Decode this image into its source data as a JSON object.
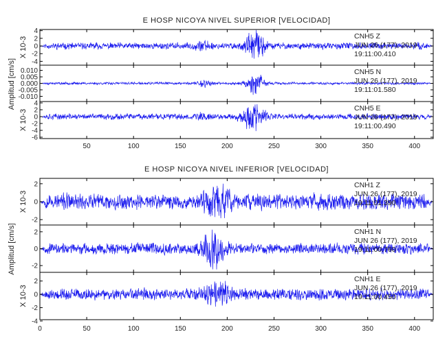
{
  "chart_data": [
    {
      "type": "line",
      "title": "E HOSP NICOYA NIVEL SUPERIOR [VELOCIDAD]",
      "ylabel": "Amplitud [cm/s]",
      "xlim": [
        0,
        420
      ],
      "xticks": [
        "50",
        "100",
        "150",
        "200",
        "250",
        "300",
        "350",
        "400"
      ],
      "xtick_values": [
        50,
        100,
        150,
        200,
        250,
        300,
        350,
        400
      ],
      "panels": [
        {
          "scale_label": "X 10-3",
          "yticks": [
            "4",
            "2",
            "0",
            "-2",
            "-4"
          ],
          "ytick_values": [
            4,
            2,
            0,
            -2,
            -4
          ],
          "ylim": [
            -5,
            4.3
          ],
          "base_amplitude": 0.8,
          "bursts": [
            {
              "x": 230,
              "width": 10,
              "amp": 3.0
            },
            {
              "x": 175,
              "width": 8,
              "amp": 0.8
            }
          ],
          "channel": "CNH5 Z",
          "date": "JUN 26 (177), 2019",
          "time": "19:11:00.410",
          "seed": 11
        },
        {
          "scale_label": "",
          "yticks": [
            "0.010",
            "0.005",
            "0.000",
            "-0.005",
            "-0.010"
          ],
          "ytick_values": [
            0.01,
            0.005,
            0.0,
            -0.005,
            -0.01
          ],
          "ylim": [
            -0.014,
            0.014
          ],
          "base_amplitude": 0.0009,
          "bursts": [
            {
              "x": 230,
              "width": 9,
              "amp": 0.0075
            },
            {
              "x": 175,
              "width": 7,
              "amp": 0.0025
            }
          ],
          "channel": "CNH5 N",
          "date": "JUN 26 (177), 2019",
          "time": "19:11:01.580",
          "seed": 23
        },
        {
          "scale_label": "X 10-3",
          "yticks": [
            "4",
            "2",
            "0",
            "-2",
            "-4",
            "-6"
          ],
          "ytick_values": [
            4,
            2,
            0,
            -2,
            -4,
            -6
          ],
          "ylim": [
            -6.4,
            4.4
          ],
          "base_amplitude": 0.8,
          "bursts": [
            {
              "x": 228,
              "width": 11,
              "amp": 3.6
            },
            {
              "x": 175,
              "width": 8,
              "amp": 0.8
            }
          ],
          "channel": "CNH5 E",
          "date": "JUN 26 (177), 2019",
          "time": "19:11:00.490",
          "seed": 37
        }
      ]
    },
    {
      "type": "line",
      "title": "E HOSP NICOYA NIVEL INFERIOR [VELOCIDAD]",
      "ylabel": "Amplitud [cm/s]",
      "xlim": [
        0,
        420
      ],
      "xticks": [
        "0",
        "50",
        "100",
        "150",
        "200",
        "250",
        "300",
        "350",
        "400"
      ],
      "xtick_values": [
        0,
        50,
        100,
        150,
        200,
        250,
        300,
        350,
        400
      ],
      "panels": [
        {
          "scale_label": "X 10-3",
          "yticks": [
            "2",
            "0",
            "-2"
          ],
          "ytick_values": [
            2,
            0,
            -2
          ],
          "ylim": [
            -2.6,
            2.6
          ],
          "base_amplitude": 0.85,
          "bursts": [
            {
              "x": 190,
              "width": 14,
              "amp": 1.0
            }
          ],
          "channel": "CNH1 Z",
          "date": "JUN 26 (177), 2019",
          "time": "19:11:01.390",
          "seed": 53
        },
        {
          "scale_label": "",
          "yticks": [
            "2",
            "0",
            "-2"
          ],
          "ytick_values": [
            2,
            0,
            -2
          ],
          "ylim": [
            -2.8,
            2.8
          ],
          "base_amplitude": 0.6,
          "bursts": [
            {
              "x": 185,
              "width": 11,
              "amp": 1.6
            }
          ],
          "channel": "CNH1 N",
          "date": "JUN 26 (177), 2019",
          "time": "19:11:00.760",
          "seed": 67
        },
        {
          "scale_label": "X 10-3",
          "yticks": [
            "2",
            "0",
            "-2",
            "-4"
          ],
          "ytick_values": [
            2,
            0,
            -2,
            -4
          ],
          "ylim": [
            -3.8,
            3.3
          ],
          "base_amplitude": 0.8,
          "bursts": [
            {
              "x": 190,
              "width": 12,
              "amp": 1.5
            }
          ],
          "channel": "CNH1 E",
          "date": "JUN 26 (177), 2019",
          "time": "19:11:00.450",
          "seed": 79
        }
      ]
    }
  ]
}
